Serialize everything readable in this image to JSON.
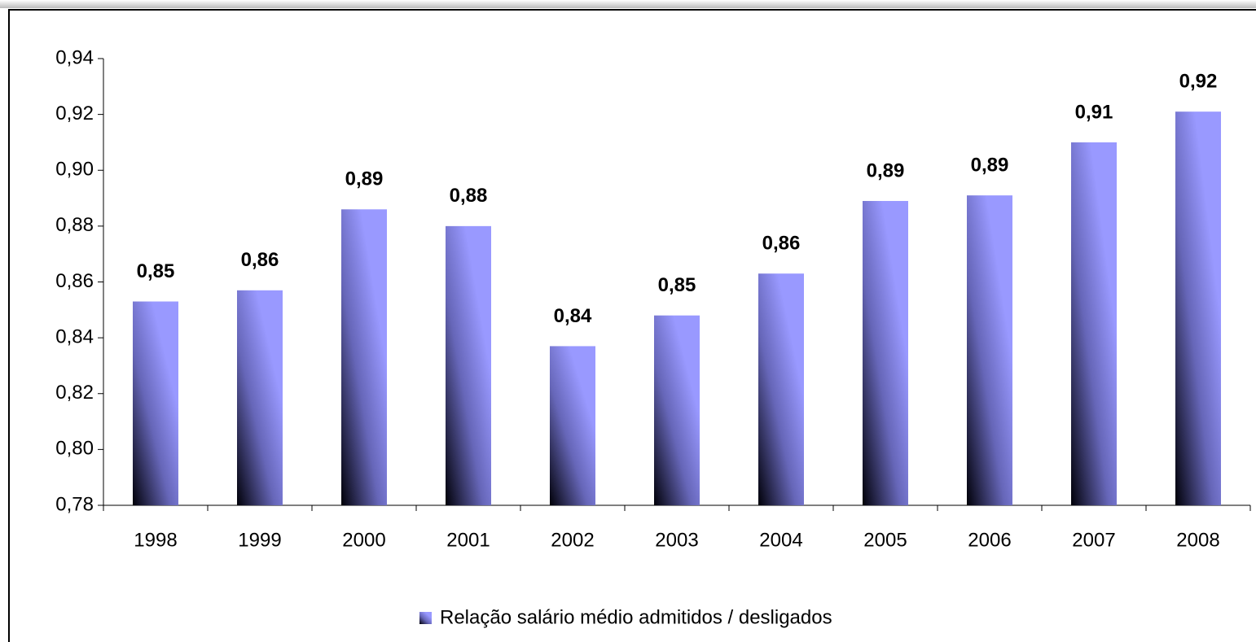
{
  "chart_data": {
    "type": "bar",
    "categories": [
      "1998",
      "1999",
      "2000",
      "2001",
      "2002",
      "2003",
      "2004",
      "2005",
      "2006",
      "2007",
      "2008"
    ],
    "series": [
      {
        "name": "Relação salário médio admitidos / desligados",
        "color": "#9999ff",
        "values": [
          0.853,
          0.857,
          0.886,
          0.88,
          0.837,
          0.848,
          0.863,
          0.889,
          0.891,
          0.91,
          0.921
        ],
        "value_labels": [
          "0,85",
          "0,86",
          "0,89",
          "0,88",
          "0,84",
          "0,85",
          "0,86",
          "0,89",
          "0,89",
          "0,91",
          "0,92"
        ]
      }
    ],
    "ylim": [
      0.78,
      0.94
    ],
    "yticks": [
      {
        "value": 0.78,
        "label": "0,78"
      },
      {
        "value": 0.8,
        "label": "0,80"
      },
      {
        "value": 0.82,
        "label": "0,82"
      },
      {
        "value": 0.84,
        "label": "0,84"
      },
      {
        "value": 0.86,
        "label": "0,86"
      },
      {
        "value": 0.88,
        "label": "0,88"
      },
      {
        "value": 0.9,
        "label": "0,90"
      },
      {
        "value": 0.92,
        "label": "0,92"
      },
      {
        "value": 0.94,
        "label": "0,94"
      }
    ],
    "grid": false,
    "legend": "bottom"
  }
}
